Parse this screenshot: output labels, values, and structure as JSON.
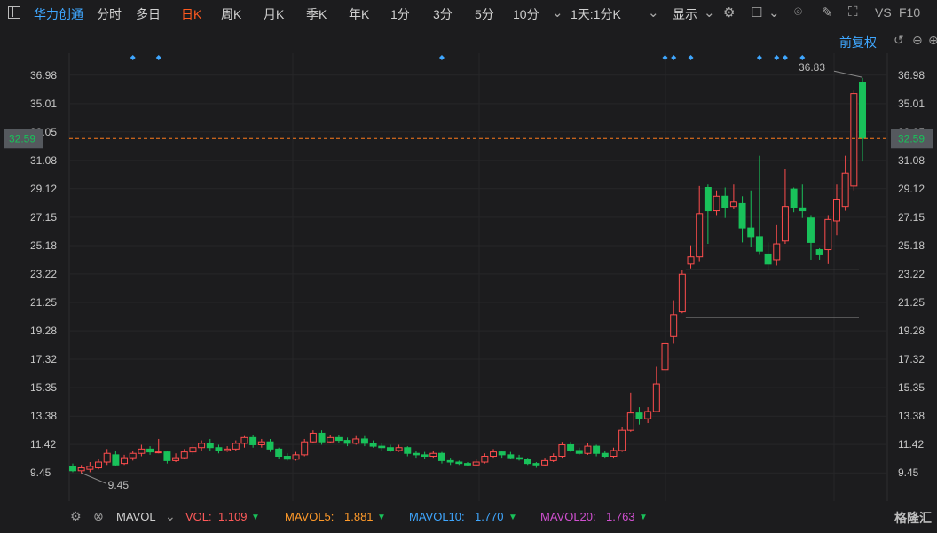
{
  "toolbar": {
    "stock_name": "华力创通",
    "periods": [
      "分时",
      "多日",
      "日K",
      "周K",
      "月K",
      "季K",
      "年K",
      "1分",
      "3分",
      "5分",
      "10分"
    ],
    "active_period": "日K",
    "overlay_mode": "1天:1分K",
    "display_label": "显示",
    "vs_label": "VS",
    "f10_label": "F10"
  },
  "sub_toolbar": {
    "adjust_label": "前复权"
  },
  "colors": {
    "up": "#ff4d4d",
    "down": "#19c15a",
    "marker": "#3fa7ff",
    "current_line": "#ff7a1a",
    "background": "#1c1c1e"
  },
  "chart_data": {
    "type": "candlestick",
    "y_ticks": [
      36.98,
      35.01,
      33.05,
      31.08,
      29.12,
      27.15,
      25.18,
      23.22,
      21.25,
      19.28,
      17.32,
      15.35,
      13.38,
      11.42,
      9.45
    ],
    "ylim": [
      7.5,
      38.5
    ],
    "current_price": 32.59,
    "high_annotation": "36.83",
    "low_annotation": "9.45",
    "support_levels": [
      23.5,
      20.2
    ],
    "event_markers": [
      7,
      10,
      43,
      69,
      70,
      72,
      80,
      82,
      83,
      85
    ],
    "candles": [
      [
        9.9,
        9.6,
        10.1,
        9.5
      ],
      [
        9.6,
        9.8,
        10.0,
        9.4
      ],
      [
        9.7,
        9.9,
        10.2,
        9.5
      ],
      [
        9.8,
        10.2,
        10.4,
        9.7
      ],
      [
        10.2,
        10.8,
        11.1,
        10.0
      ],
      [
        10.7,
        10.0,
        11.0,
        9.9
      ],
      [
        10.1,
        10.5,
        10.7,
        10.0
      ],
      [
        10.5,
        10.8,
        11.0,
        10.3
      ],
      [
        10.8,
        11.1,
        11.4,
        10.6
      ],
      [
        11.1,
        10.9,
        11.3,
        10.7
      ],
      [
        10.9,
        10.9,
        11.8,
        10.8
      ],
      [
        10.9,
        10.3,
        11.0,
        10.1
      ],
      [
        10.3,
        10.5,
        10.8,
        10.2
      ],
      [
        10.5,
        10.9,
        11.1,
        10.4
      ],
      [
        10.9,
        11.2,
        11.4,
        10.7
      ],
      [
        11.2,
        11.5,
        11.7,
        11.0
      ],
      [
        11.5,
        11.2,
        11.8,
        11.0
      ],
      [
        11.2,
        11.0,
        11.4,
        10.8
      ],
      [
        11.0,
        11.1,
        11.3,
        10.9
      ],
      [
        11.1,
        11.5,
        11.7,
        11.0
      ],
      [
        11.5,
        11.9,
        12.0,
        11.2
      ],
      [
        11.9,
        11.4,
        12.1,
        11.2
      ],
      [
        11.4,
        11.6,
        11.8,
        11.2
      ],
      [
        11.6,
        11.1,
        11.8,
        10.9
      ],
      [
        11.1,
        10.6,
        11.2,
        10.4
      ],
      [
        10.6,
        10.4,
        10.8,
        10.3
      ],
      [
        10.4,
        10.7,
        10.9,
        10.3
      ],
      [
        10.7,
        11.6,
        11.8,
        10.6
      ],
      [
        11.6,
        12.2,
        12.4,
        11.5
      ],
      [
        12.2,
        11.6,
        12.4,
        11.4
      ],
      [
        11.6,
        11.9,
        12.1,
        11.5
      ],
      [
        11.9,
        11.7,
        12.1,
        11.5
      ],
      [
        11.7,
        11.5,
        11.9,
        11.3
      ],
      [
        11.5,
        11.8,
        12.0,
        11.4
      ],
      [
        11.8,
        11.5,
        12.0,
        11.3
      ],
      [
        11.5,
        11.3,
        11.7,
        11.2
      ],
      [
        11.3,
        11.2,
        11.5,
        11.0
      ],
      [
        11.2,
        11.0,
        11.4,
        10.9
      ],
      [
        11.0,
        11.2,
        11.4,
        10.9
      ],
      [
        11.2,
        10.8,
        11.3,
        10.6
      ],
      [
        10.8,
        10.7,
        11.0,
        10.5
      ],
      [
        10.7,
        10.6,
        10.9,
        10.4
      ],
      [
        10.6,
        10.8,
        11.0,
        10.5
      ],
      [
        10.8,
        10.3,
        10.9,
        10.1
      ],
      [
        10.3,
        10.2,
        10.5,
        10.0
      ],
      [
        10.2,
        10.1,
        10.3,
        10.0
      ],
      [
        10.1,
        10.0,
        10.2,
        9.9
      ],
      [
        10.0,
        10.2,
        10.4,
        9.9
      ],
      [
        10.2,
        10.6,
        10.8,
        10.1
      ],
      [
        10.6,
        10.9,
        11.1,
        10.5
      ],
      [
        10.9,
        10.7,
        11.0,
        10.5
      ],
      [
        10.7,
        10.5,
        10.9,
        10.4
      ],
      [
        10.5,
        10.4,
        10.7,
        10.3
      ],
      [
        10.4,
        10.1,
        10.5,
        10.0
      ],
      [
        10.1,
        10.0,
        10.2,
        9.8
      ],
      [
        10.0,
        10.3,
        10.5,
        9.9
      ],
      [
        10.3,
        10.6,
        10.8,
        10.2
      ],
      [
        10.6,
        11.4,
        11.6,
        10.5
      ],
      [
        11.4,
        11.0,
        11.6,
        10.9
      ],
      [
        11.0,
        10.8,
        11.2,
        10.7
      ],
      [
        10.8,
        11.3,
        11.5,
        10.7
      ],
      [
        11.3,
        10.8,
        11.4,
        10.6
      ],
      [
        10.8,
        10.6,
        11.0,
        10.5
      ],
      [
        10.6,
        11.0,
        11.2,
        10.5
      ],
      [
        11.0,
        12.4,
        12.6,
        10.9
      ],
      [
        12.4,
        13.6,
        15.0,
        12.3
      ],
      [
        13.6,
        13.2,
        14.0,
        12.8
      ],
      [
        13.2,
        13.7,
        14.0,
        12.9
      ],
      [
        13.7,
        15.6,
        16.8,
        13.8
      ],
      [
        16.6,
        18.4,
        19.4,
        16.5
      ],
      [
        18.9,
        20.4,
        21.4,
        18.4
      ],
      [
        20.6,
        23.2,
        23.5,
        20.5
      ],
      [
        23.9,
        24.4,
        25.2,
        23.6
      ],
      [
        24.4,
        27.4,
        29.3,
        24.1
      ],
      [
        29.2,
        27.6,
        29.4,
        25.3
      ],
      [
        27.6,
        28.6,
        29.0,
        27.3
      ],
      [
        28.6,
        27.8,
        29.2,
        27.1
      ],
      [
        27.9,
        28.2,
        29.4,
        27.7
      ],
      [
        28.1,
        26.4,
        28.6,
        25.4
      ],
      [
        26.4,
        25.8,
        29.0,
        25.1
      ],
      [
        25.8,
        24.8,
        31.4,
        24.6
      ],
      [
        24.6,
        23.9,
        25.4,
        23.5
      ],
      [
        24.2,
        25.3,
        26.6,
        23.8
      ],
      [
        25.5,
        27.9,
        30.5,
        25.3
      ],
      [
        29.1,
        27.8,
        29.2,
        27.5
      ],
      [
        27.8,
        27.6,
        29.4,
        27.1
      ],
      [
        27.1,
        25.4,
        27.3,
        24.2
      ],
      [
        24.9,
        24.6,
        25.0,
        24.2
      ],
      [
        24.9,
        27.0,
        27.3,
        23.9
      ],
      [
        26.9,
        28.4,
        29.4,
        25.9
      ],
      [
        27.9,
        30.2,
        31.4,
        27.6
      ],
      [
        29.3,
        35.7,
        35.9,
        29.0
      ],
      [
        36.5,
        32.6,
        36.8,
        31.0
      ]
    ]
  },
  "footer": {
    "indicator": "MAVOL",
    "vol_label": "VOL:",
    "vol_value": "1.109",
    "mavol5_label": "MAVOL5:",
    "mavol5_value": "1.881",
    "mavol10_label": "MAVOL10:",
    "mavol10_value": "1.770",
    "mavol20_label": "MAVOL20:",
    "mavol20_value": "1.763",
    "brand": "格隆汇"
  }
}
